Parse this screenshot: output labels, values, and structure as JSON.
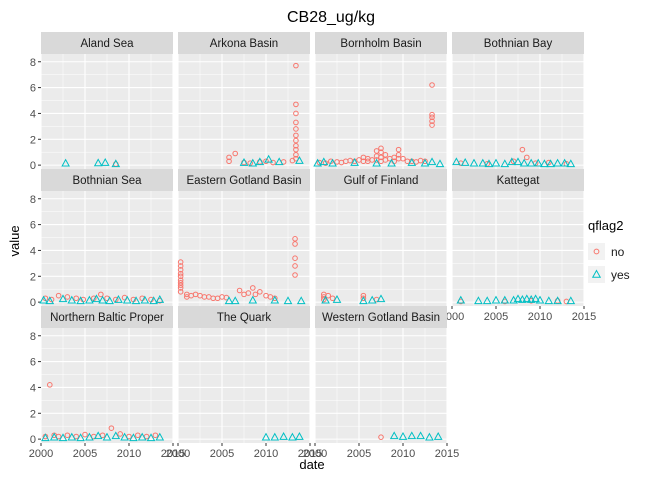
{
  "chart_data": {
    "type": "scatter",
    "title": "CB28_ug/kg",
    "xlabel": "date",
    "ylabel": "value",
    "xlim": [
      2000,
      2015
    ],
    "ylim": [
      -0.3,
      8.6
    ],
    "x_ticks": [
      2000,
      2005,
      2010,
      2015
    ],
    "y_ticks": [
      0,
      2,
      4,
      6,
      8
    ],
    "grid": true,
    "legend": {
      "title": "qflag2",
      "position": "right",
      "entries": [
        {
          "label": "no",
          "shape": "circle",
          "color": "#F8766D"
        },
        {
          "label": "yes",
          "shape": "triangle",
          "color": "#00BFC4"
        }
      ]
    },
    "colors": {
      "no": "#F8766D",
      "yes": "#00BFC4",
      "panel_bg": "#EBEBEB",
      "strip_bg": "#D9D9D9",
      "grid": "#FFFFFF"
    },
    "facets": [
      {
        "name": "Aland Sea",
        "no": [
          [
            2008.5,
            0.08
          ]
        ],
        "yes": [
          [
            2002.8,
            0.1
          ],
          [
            2006.5,
            0.12
          ],
          [
            2007.3,
            0.15
          ],
          [
            2008.5,
            0.05
          ]
        ]
      },
      {
        "name": "Arkona Basin",
        "no": [
          [
            2005.8,
            0.3
          ],
          [
            2005.8,
            0.6
          ],
          [
            2006.5,
            0.9
          ],
          [
            2007.5,
            0.2
          ],
          [
            2008.2,
            0.15
          ],
          [
            2009.3,
            0.25
          ],
          [
            2010,
            0.3
          ],
          [
            2010.8,
            0.2
          ],
          [
            2012,
            0.25
          ],
          [
            2013,
            0.35
          ],
          [
            2013.4,
            0.5
          ],
          [
            2013.4,
            0.8
          ],
          [
            2013.4,
            1.2
          ],
          [
            2013.4,
            1.5
          ],
          [
            2013.4,
            1.9
          ],
          [
            2013.4,
            2.3
          ],
          [
            2013.4,
            2.8
          ],
          [
            2013.4,
            3.3
          ],
          [
            2013.4,
            4.0
          ],
          [
            2013.4,
            4.7
          ],
          [
            2013.4,
            7.7
          ]
        ],
        "yes": [
          [
            2007.5,
            0.15
          ],
          [
            2008.5,
            0.1
          ],
          [
            2009.3,
            0.2
          ],
          [
            2010.3,
            0.4
          ],
          [
            2011.5,
            0.2
          ],
          [
            2013.8,
            0.3
          ]
        ]
      },
      {
        "name": "Bornholm Basin",
        "no": [
          [
            2000.5,
            0.2
          ],
          [
            2001.2,
            0.15
          ],
          [
            2001.8,
            0.3
          ],
          [
            2002.5,
            0.25
          ],
          [
            2003,
            0.2
          ],
          [
            2003.5,
            0.3
          ],
          [
            2004,
            0.35
          ],
          [
            2004.5,
            0.3
          ],
          [
            2005,
            0.4
          ],
          [
            2005.5,
            0.6
          ],
          [
            2005.5,
            0.3
          ],
          [
            2006,
            0.5
          ],
          [
            2006,
            0.3
          ],
          [
            2006.5,
            0.4
          ],
          [
            2007,
            1.1
          ],
          [
            2007,
            0.7
          ],
          [
            2007,
            0.4
          ],
          [
            2007.5,
            1.3
          ],
          [
            2007.5,
            1.0
          ],
          [
            2007.5,
            0.6
          ],
          [
            2007.5,
            0.3
          ],
          [
            2008,
            0.8
          ],
          [
            2008,
            0.4
          ],
          [
            2008.5,
            0.5
          ],
          [
            2009,
            0.6
          ],
          [
            2009,
            0.3
          ],
          [
            2009.5,
            1.2
          ],
          [
            2009.5,
            0.8
          ],
          [
            2009.5,
            0.5
          ],
          [
            2010,
            0.5
          ],
          [
            2010.5,
            0.3
          ],
          [
            2011,
            0.3
          ],
          [
            2011.5,
            0.25
          ],
          [
            2012,
            0.35
          ],
          [
            2012.5,
            0.3
          ],
          [
            2013.3,
            3.1
          ],
          [
            2013.3,
            3.4
          ],
          [
            2013.3,
            3.7
          ],
          [
            2013.3,
            3.9
          ],
          [
            2013.3,
            6.2
          ]
        ],
        "yes": [
          [
            2000.3,
            0.1
          ],
          [
            2001,
            0.2
          ],
          [
            2002,
            0.1
          ],
          [
            2004.5,
            0.15
          ],
          [
            2007,
            0.1
          ],
          [
            2008.7,
            0.1
          ],
          [
            2011,
            0.15
          ],
          [
            2012.5,
            0.1
          ],
          [
            2013.3,
            0.2
          ],
          [
            2014.2,
            0.05
          ]
        ]
      },
      {
        "name": "Bothnian Bay",
        "no": [
          [
            2001,
            0.15
          ],
          [
            2004,
            0.1
          ],
          [
            2007,
            0.3
          ],
          [
            2008,
            1.2
          ],
          [
            2008.5,
            0.6
          ],
          [
            2009.5,
            0.15
          ],
          [
            2011,
            0.2
          ],
          [
            2013,
            0.1
          ]
        ],
        "yes": [
          [
            2000.5,
            0.2
          ],
          [
            2001.5,
            0.15
          ],
          [
            2002.5,
            0.1
          ],
          [
            2003.5,
            0.1
          ],
          [
            2004.2,
            0.05
          ],
          [
            2005,
            0.1
          ],
          [
            2006,
            0.05
          ],
          [
            2006.8,
            0.2
          ],
          [
            2007.5,
            0.2
          ],
          [
            2008.2,
            0.1
          ],
          [
            2009,
            0.1
          ],
          [
            2009.8,
            0.1
          ],
          [
            2010.5,
            0.05
          ],
          [
            2011.2,
            0.05
          ],
          [
            2012,
            0.1
          ],
          [
            2012.8,
            0.1
          ],
          [
            2013.5,
            0.05
          ]
        ]
      },
      {
        "name": "Bothnian Sea",
        "no": [
          [
            2000.5,
            0.3
          ],
          [
            2001.2,
            0.2
          ],
          [
            2002,
            0.5
          ],
          [
            2003,
            0.4
          ],
          [
            2004,
            0.3
          ],
          [
            2004.8,
            0.2
          ],
          [
            2006,
            0.3
          ],
          [
            2006.8,
            0.6
          ],
          [
            2007.5,
            0.3
          ],
          [
            2008.5,
            0.2
          ],
          [
            2009.5,
            0.35
          ],
          [
            2010.5,
            0.2
          ],
          [
            2011.5,
            0.3
          ],
          [
            2012.5,
            0.2
          ],
          [
            2013.5,
            0.1
          ]
        ],
        "yes": [
          [
            2000.3,
            0.1
          ],
          [
            2001,
            0.05
          ],
          [
            2002.5,
            0.2
          ],
          [
            2003.5,
            0.1
          ],
          [
            2004.5,
            0.05
          ],
          [
            2005.5,
            0.1
          ],
          [
            2006.3,
            0.2
          ],
          [
            2007,
            0.1
          ],
          [
            2007.8,
            0.05
          ],
          [
            2008.8,
            0.15
          ],
          [
            2009.8,
            0.1
          ],
          [
            2010.8,
            0.05
          ],
          [
            2011.8,
            0.1
          ],
          [
            2012.8,
            0.05
          ],
          [
            2013.5,
            0.15
          ]
        ]
      },
      {
        "name": "Eastern Gotland Basin",
        "no": [
          [
            2000.3,
            3.1
          ],
          [
            2000.3,
            2.8
          ],
          [
            2000.3,
            2.5
          ],
          [
            2000.3,
            2.2
          ],
          [
            2000.3,
            2.0
          ],
          [
            2000.3,
            1.7
          ],
          [
            2000.3,
            1.5
          ],
          [
            2000.3,
            1.3
          ],
          [
            2000.3,
            1.1
          ],
          [
            2000.3,
            0.8
          ],
          [
            2001,
            0.6
          ],
          [
            2001,
            0.4
          ],
          [
            2001.5,
            0.5
          ],
          [
            2002,
            0.6
          ],
          [
            2002.5,
            0.5
          ],
          [
            2003,
            0.4
          ],
          [
            2003.5,
            0.4
          ],
          [
            2004,
            0.3
          ],
          [
            2004.5,
            0.3
          ],
          [
            2005,
            0.4
          ],
          [
            2005.5,
            0.35
          ],
          [
            2007,
            0.9
          ],
          [
            2007.5,
            0.6
          ],
          [
            2008,
            0.7
          ],
          [
            2008.5,
            1.1
          ],
          [
            2008.8,
            0.6
          ],
          [
            2009.3,
            0.8
          ],
          [
            2010,
            0.5
          ],
          [
            2010.5,
            0.4
          ],
          [
            2011,
            0.3
          ],
          [
            2013.3,
            2.1
          ],
          [
            2013.3,
            2.8
          ],
          [
            2013.3,
            3.4
          ],
          [
            2013.3,
            4.5
          ],
          [
            2013.3,
            4.9
          ]
        ],
        "yes": [
          [
            2005.8,
            0.05
          ],
          [
            2006.5,
            0.05
          ],
          [
            2008.5,
            0.1
          ],
          [
            2011,
            0.1
          ],
          [
            2012.5,
            0.05
          ],
          [
            2014,
            0.05
          ]
        ]
      },
      {
        "name": "Gulf of Finland",
        "no": [
          [
            2001,
            0.6
          ],
          [
            2001,
            0.4
          ],
          [
            2001,
            0.2
          ],
          [
            2001.5,
            0.5
          ],
          [
            2002,
            0.3
          ],
          [
            2005.5,
            0.5
          ],
          [
            2005.5,
            0.3
          ],
          [
            2007,
            0.2
          ]
        ],
        "yes": [
          [
            2001.2,
            0.1
          ],
          [
            2002.5,
            0.15
          ],
          [
            2005.5,
            0.05
          ],
          [
            2006.5,
            0.1
          ],
          [
            2007.5,
            0.2
          ]
        ]
      },
      {
        "name": "Kattegat",
        "no": [
          [
            2001,
            0.05
          ],
          [
            2006,
            0.05
          ],
          [
            2009,
            0.1
          ],
          [
            2012,
            0.1
          ],
          [
            2013,
            0.05
          ]
        ],
        "yes": [
          [
            2001,
            0.1
          ],
          [
            2003,
            0.05
          ],
          [
            2004,
            0.05
          ],
          [
            2005,
            0.1
          ],
          [
            2006,
            0.1
          ],
          [
            2007,
            0.1
          ],
          [
            2007.5,
            0.2
          ],
          [
            2008,
            0.15
          ],
          [
            2008.5,
            0.2
          ],
          [
            2009,
            0.15
          ],
          [
            2009.5,
            0.2
          ],
          [
            2010,
            0.1
          ],
          [
            2011,
            0.05
          ],
          [
            2012,
            0.05
          ],
          [
            2013.5,
            0.05
          ]
        ]
      },
      {
        "name": "Northern Baltic Proper",
        "no": [
          [
            2001,
            4.2
          ],
          [
            2000.5,
            0.2
          ],
          [
            2001.5,
            0.3
          ],
          [
            2002,
            0.2
          ],
          [
            2003,
            0.3
          ],
          [
            2004,
            0.2
          ],
          [
            2005,
            0.35
          ],
          [
            2006,
            0.2
          ],
          [
            2007,
            0.3
          ],
          [
            2008,
            0.85
          ],
          [
            2009,
            0.4
          ],
          [
            2010,
            0.2
          ],
          [
            2011,
            0.3
          ],
          [
            2012,
            0.2
          ],
          [
            2013,
            0.3
          ]
        ],
        "yes": [
          [
            2000.5,
            0.05
          ],
          [
            2001.5,
            0.1
          ],
          [
            2002.5,
            0.05
          ],
          [
            2003.5,
            0.1
          ],
          [
            2004.5,
            0.05
          ],
          [
            2005.5,
            0.1
          ],
          [
            2006.5,
            0.2
          ],
          [
            2007.5,
            0.1
          ],
          [
            2008.5,
            0.2
          ],
          [
            2009.5,
            0.1
          ],
          [
            2010.5,
            0.05
          ],
          [
            2011.5,
            0.1
          ],
          [
            2012.5,
            0.05
          ],
          [
            2013.5,
            0.1
          ]
        ]
      },
      {
        "name": "The Quark",
        "no": [],
        "yes": [
          [
            2010,
            0.1
          ],
          [
            2011,
            0.1
          ],
          [
            2012,
            0.15
          ],
          [
            2013,
            0.1
          ],
          [
            2013.8,
            0.15
          ]
        ]
      },
      {
        "name": "Western Gotland Basin",
        "no": [
          [
            2007.5,
            0.15
          ]
        ],
        "yes": [
          [
            2009,
            0.2
          ],
          [
            2010,
            0.15
          ],
          [
            2011,
            0.2
          ],
          [
            2012,
            0.2
          ],
          [
            2013,
            0.1
          ],
          [
            2014,
            0.15
          ]
        ]
      }
    ]
  }
}
